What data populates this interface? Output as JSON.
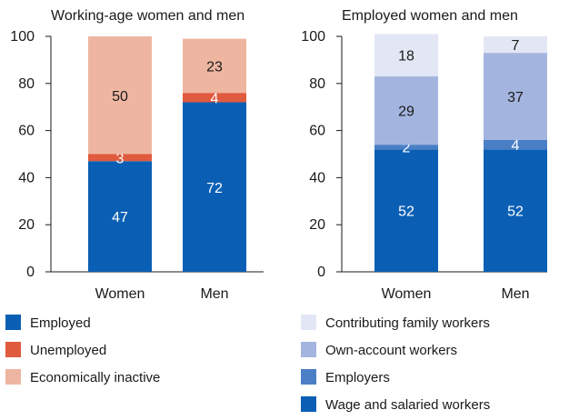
{
  "colors": {
    "employed": "#0a5fb4",
    "unemployed": "#e05a3e",
    "inactive": "#eeb6a1",
    "contributing": "#e3e7f5",
    "own_account": "#a3b5df",
    "employers": "#4a7fc6",
    "wage": "#0a5fb4",
    "axis": "#1a1a1a"
  },
  "chart_data": [
    {
      "type": "bar",
      "stacked": true,
      "title": "Working-age women and men",
      "categories": [
        "Women",
        "Men"
      ],
      "ylim": [
        0,
        100
      ],
      "yticks": [
        "0",
        "20",
        "40",
        "60",
        "80",
        "100"
      ],
      "series": [
        {
          "name": "Employed",
          "color_key": "employed",
          "label_color": "#ffffff",
          "values": [
            47,
            72
          ]
        },
        {
          "name": "Unemployed",
          "color_key": "unemployed",
          "label_color": "#ffffff",
          "values": [
            3,
            4
          ]
        },
        {
          "name": "Economically inactive",
          "color_key": "inactive",
          "label_color": "#1a1a1a",
          "values": [
            50,
            23
          ]
        }
      ]
    },
    {
      "type": "bar",
      "stacked": true,
      "title": "Employed women and men",
      "categories": [
        "Women",
        "Men"
      ],
      "ylim": [
        0,
        100
      ],
      "yticks": [
        "0",
        "20",
        "40",
        "60",
        "80",
        "100"
      ],
      "series": [
        {
          "name": "Wage and salaried workers",
          "color_key": "wage",
          "label_color": "#ffffff",
          "values": [
            52,
            52
          ]
        },
        {
          "name": "Employers",
          "color_key": "employers",
          "label_color": "#ffffff",
          "values": [
            2,
            4
          ]
        },
        {
          "name": "Own-account workers",
          "color_key": "own_account",
          "label_color": "#1a1a1a",
          "values": [
            29,
            37
          ]
        },
        {
          "name": "Contributing family workers",
          "color_key": "contributing",
          "label_color": "#1a1a1a",
          "values": [
            18,
            7
          ]
        }
      ]
    }
  ],
  "legends": [
    {
      "items": [
        {
          "label": "Employed",
          "color_key": "employed"
        },
        {
          "label": "Unemployed",
          "color_key": "unemployed"
        },
        {
          "label": "Economically inactive",
          "color_key": "inactive"
        }
      ]
    },
    {
      "items": [
        {
          "label": "Contributing family workers",
          "color_key": "contributing"
        },
        {
          "label": "Own-account workers",
          "color_key": "own_account"
        },
        {
          "label": "Employers",
          "color_key": "employers"
        },
        {
          "label": "Wage and salaried workers",
          "color_key": "wage"
        }
      ]
    }
  ]
}
